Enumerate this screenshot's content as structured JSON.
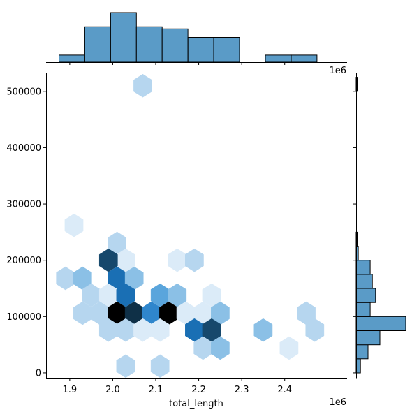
{
  "chart_data": {
    "type": "hexbin",
    "xlabel": "total_length",
    "ylabel": "",
    "x_offset_label": "1e6",
    "top_offset_label": "1e6",
    "xlim": [
      1.845,
      2.545
    ],
    "ylim": [
      -10000,
      532000
    ],
    "x_ticks": [
      {
        "value": 1.9,
        "label": "1.9"
      },
      {
        "value": 2.0,
        "label": "2.0"
      },
      {
        "value": 2.1,
        "label": "2.1"
      },
      {
        "value": 2.2,
        "label": "2.2"
      },
      {
        "value": 2.3,
        "label": "2.3"
      },
      {
        "value": 2.4,
        "label": "2.4"
      }
    ],
    "y_ticks": [
      {
        "value": 0,
        "label": "0"
      },
      {
        "value": 100000,
        "label": "100000"
      },
      {
        "value": 200000,
        "label": "200000"
      },
      {
        "value": 300000,
        "label": "300000"
      },
      {
        "value": 400000,
        "label": "400000"
      },
      {
        "value": 500000,
        "label": "500000"
      }
    ],
    "colors": {
      "hist_fill": "#5a9bc7",
      "hist_edge": "#000000",
      "hex_ramp": [
        "#dbebf8",
        "#b6d6ef",
        "#8bc0e6",
        "#5aa5dc",
        "#2f86cc",
        "#1a6fb4",
        "#1b5c8e",
        "#16486c",
        "#0f3047",
        "#000000"
      ]
    },
    "hexbins": [
      {
        "x": 2.07,
        "y": 510000,
        "level": 2
      },
      {
        "x": 1.91,
        "y": 262000,
        "level": 1
      },
      {
        "x": 2.01,
        "y": 230000,
        "level": 2
      },
      {
        "x": 2.03,
        "y": 200000,
        "level": 1
      },
      {
        "x": 1.99,
        "y": 200000,
        "level": 8
      },
      {
        "x": 2.15,
        "y": 200000,
        "level": 1
      },
      {
        "x": 2.19,
        "y": 200000,
        "level": 2
      },
      {
        "x": 1.89,
        "y": 168000,
        "level": 2
      },
      {
        "x": 1.93,
        "y": 168000,
        "level": 3
      },
      {
        "x": 2.01,
        "y": 168000,
        "level": 6
      },
      {
        "x": 2.05,
        "y": 168000,
        "level": 3
      },
      {
        "x": 1.95,
        "y": 138000,
        "level": 2
      },
      {
        "x": 1.99,
        "y": 138000,
        "level": 1
      },
      {
        "x": 2.03,
        "y": 138000,
        "level": 6
      },
      {
        "x": 2.11,
        "y": 138000,
        "level": 4
      },
      {
        "x": 2.15,
        "y": 138000,
        "level": 3
      },
      {
        "x": 2.23,
        "y": 138000,
        "level": 1
      },
      {
        "x": 1.93,
        "y": 106000,
        "level": 2
      },
      {
        "x": 1.97,
        "y": 106000,
        "level": 2
      },
      {
        "x": 2.01,
        "y": 106000,
        "level": 10
      },
      {
        "x": 2.05,
        "y": 106000,
        "level": 9
      },
      {
        "x": 2.09,
        "y": 106000,
        "level": 5
      },
      {
        "x": 2.13,
        "y": 106000,
        "level": 10
      },
      {
        "x": 2.17,
        "y": 106000,
        "level": 1
      },
      {
        "x": 2.21,
        "y": 106000,
        "level": 1
      },
      {
        "x": 2.25,
        "y": 106000,
        "level": 3
      },
      {
        "x": 2.45,
        "y": 106000,
        "level": 2
      },
      {
        "x": 1.99,
        "y": 76000,
        "level": 2
      },
      {
        "x": 2.03,
        "y": 76000,
        "level": 2
      },
      {
        "x": 2.07,
        "y": 76000,
        "level": 1
      },
      {
        "x": 2.11,
        "y": 76000,
        "level": 1
      },
      {
        "x": 2.19,
        "y": 76000,
        "level": 6
      },
      {
        "x": 2.23,
        "y": 76000,
        "level": 8
      },
      {
        "x": 2.35,
        "y": 76000,
        "level": 3
      },
      {
        "x": 2.47,
        "y": 76000,
        "level": 2
      },
      {
        "x": 2.21,
        "y": 44000,
        "level": 2
      },
      {
        "x": 2.25,
        "y": 44000,
        "level": 3
      },
      {
        "x": 2.41,
        "y": 44000,
        "level": 1
      },
      {
        "x": 2.03,
        "y": 12000,
        "level": 2
      },
      {
        "x": 2.11,
        "y": 12000,
        "level": 2
      }
    ],
    "top_histogram": [
      {
        "x0": 1.875,
        "x1": 1.935,
        "count": 1
      },
      {
        "x0": 1.935,
        "x1": 1.995,
        "count": 5
      },
      {
        "x0": 1.995,
        "x1": 2.055,
        "count": 7
      },
      {
        "x0": 2.055,
        "x1": 2.115,
        "count": 5
      },
      {
        "x0": 2.115,
        "x1": 2.175,
        "count": 4.7
      },
      {
        "x0": 2.175,
        "x1": 2.235,
        "count": 3.5
      },
      {
        "x0": 2.235,
        "x1": 2.295,
        "count": 3.5
      },
      {
        "x0": 2.295,
        "x1": 2.355,
        "count": 0
      },
      {
        "x0": 2.355,
        "x1": 2.415,
        "count": 1
      },
      {
        "x0": 2.415,
        "x1": 2.475,
        "count": 1
      }
    ],
    "right_histogram": [
      {
        "y0": 0,
        "y1": 25000,
        "count": 2
      },
      {
        "y0": 25000,
        "y1": 50000,
        "count": 5.5
      },
      {
        "y0": 50000,
        "y1": 75000,
        "count": 11
      },
      {
        "y0": 75000,
        "y1": 100000,
        "count": 23
      },
      {
        "y0": 100000,
        "y1": 125000,
        "count": 6.5
      },
      {
        "y0": 125000,
        "y1": 150000,
        "count": 9
      },
      {
        "y0": 150000,
        "y1": 175000,
        "count": 7.5
      },
      {
        "y0": 175000,
        "y1": 200000,
        "count": 6.5
      },
      {
        "y0": 200000,
        "y1": 225000,
        "count": 1
      },
      {
        "y0": 225000,
        "y1": 250000,
        "count": 0.5
      },
      {
        "y0": 500000,
        "y1": 525000,
        "count": 0.5
      }
    ]
  }
}
